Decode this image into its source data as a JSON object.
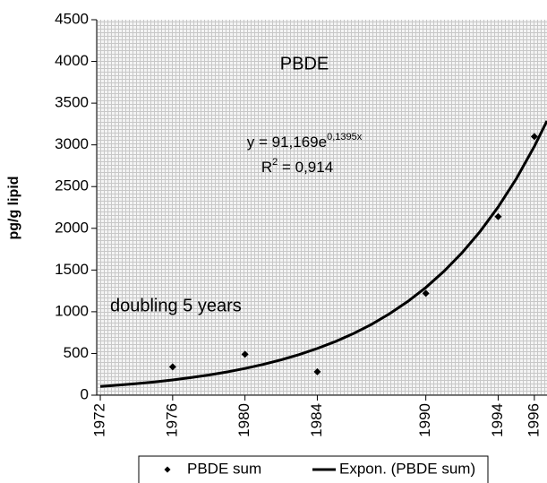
{
  "chart_data": {
    "type": "scatter",
    "title": "PBDE",
    "y_label": "pg/g lipid",
    "equation": {
      "base": "y = 91,169e",
      "exponent": "0,1395x"
    },
    "r_squared": {
      "base": "R",
      "sup": "2",
      "rest": " = 0,914"
    },
    "annotation": "doubling 5 years",
    "xlim": [
      1971.8,
      1996.7
    ],
    "xticks": [
      1972,
      1976,
      1980,
      1984,
      1990,
      1994,
      1996
    ],
    "ylim": [
      0,
      4500
    ],
    "yticks": [
      0,
      500,
      1000,
      1500,
      2000,
      2500,
      3000,
      3500,
      4000,
      4500
    ],
    "grid": true,
    "legend": "bottom",
    "series": [
      {
        "name": "PBDE sum",
        "color": "#000000",
        "marker": "diamond",
        "x": [
          1976,
          1980,
          1984,
          1990,
          1994,
          1996
        ],
        "values": [
          340,
          490,
          280,
          1220,
          2140,
          3100
        ]
      },
      {
        "name": "Expon. (PBDE sum)",
        "color": "#000000",
        "marker": "line",
        "x": [
          1972,
          1973,
          1974,
          1975,
          1976,
          1977,
          1978,
          1979,
          1980,
          1981,
          1982,
          1983,
          1984,
          1985,
          1986,
          1987,
          1988,
          1989,
          1990,
          1991,
          1992,
          1993,
          1994,
          1995,
          1996,
          1996.7
        ],
        "values": [
          104.8,
          120.5,
          138.5,
          159.3,
          183.1,
          210.6,
          242.1,
          278.3,
          320.0,
          367.9,
          423.0,
          486.3,
          559.1,
          642.8,
          739.0,
          849.7,
          976.9,
          1123.1,
          1291.2,
          1484.6,
          1706.9,
          1962.4,
          2256.2,
          2594.0,
          2982.3,
          3287
        ]
      }
    ]
  }
}
